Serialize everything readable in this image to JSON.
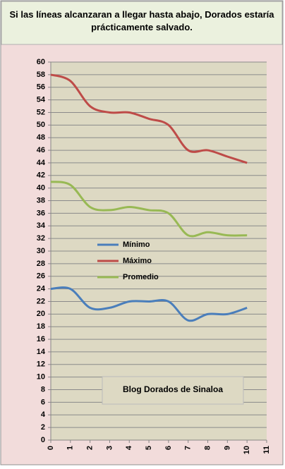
{
  "chart_data": {
    "type": "line",
    "title": "Si las líneas alcanzaran a llegar hasta abajo, Dorados estaría prácticamente salvado.",
    "annotation": "Blog Dorados de Sinaloa",
    "x": [
      0,
      1,
      2,
      3,
      4,
      5,
      6,
      7,
      8,
      9,
      10
    ],
    "series": [
      {
        "name": "Mínimo",
        "color": "#4a7ebb",
        "values": [
          24,
          24,
          21,
          21,
          22,
          22,
          22,
          19,
          20,
          20,
          21
        ]
      },
      {
        "name": "Máximo",
        "color": "#be4b48",
        "values": [
          58,
          57,
          53,
          52,
          52,
          51,
          50,
          46,
          46,
          45,
          44
        ]
      },
      {
        "name": "Promedio",
        "color": "#98b954",
        "values": [
          41,
          40.5,
          37,
          36.5,
          37,
          36.5,
          36,
          32.5,
          33,
          32.5,
          32.5
        ]
      }
    ],
    "xlim": [
      0,
      11
    ],
    "xticks": [
      0,
      1,
      2,
      3,
      4,
      5,
      6,
      7,
      8,
      9,
      10,
      11
    ],
    "ylim": [
      0,
      60
    ],
    "yticks": [
      0,
      2,
      4,
      6,
      8,
      10,
      12,
      14,
      16,
      18,
      20,
      22,
      24,
      26,
      28,
      30,
      32,
      34,
      36,
      38,
      40,
      42,
      44,
      46,
      48,
      50,
      52,
      54,
      56,
      58,
      60
    ],
    "grid": true
  }
}
